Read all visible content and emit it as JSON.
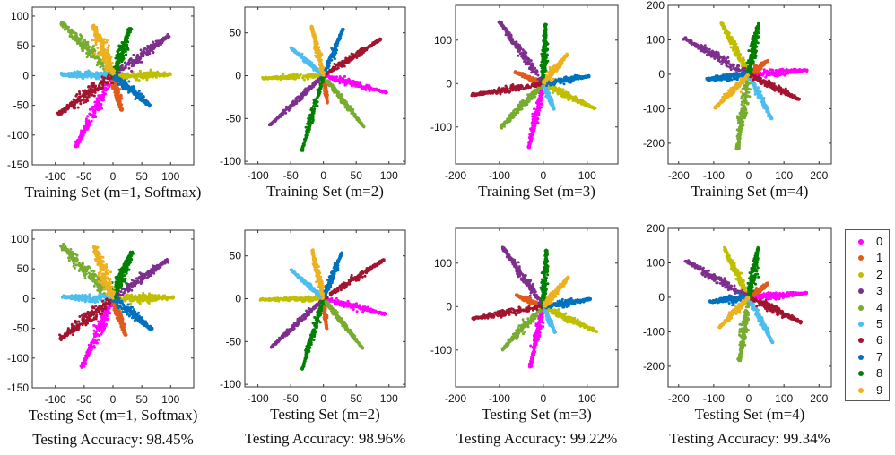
{
  "class_colors": [
    "#ff00ff",
    "#e05a1c",
    "#bfbf00",
    "#7e2f8e",
    "#77ac30",
    "#4dbeee",
    "#a2142f",
    "#0072bd",
    "#008000",
    "#edb120"
  ],
  "legend": {
    "labels": [
      "0",
      "1",
      "2",
      "3",
      "4",
      "5",
      "6",
      "7",
      "8",
      "9"
    ]
  },
  "chart_data": [
    {
      "type": "scatter",
      "title": "",
      "caption": "Training Set (m=1, Softmax)",
      "accuracy": "",
      "xlim": [
        -140,
        140
      ],
      "ylim": [
        -150,
        115
      ],
      "xticks": [
        -100,
        -50,
        0,
        50,
        100
      ],
      "xtick_labels": [
        "-100",
        "-50",
        "0",
        "50",
        "100"
      ],
      "yticks": [
        -150,
        -100,
        -50,
        0,
        50,
        100
      ],
      "ytick_labels": [
        "-150",
        "-100",
        "-50",
        "0",
        "50",
        "100"
      ],
      "clusters": [
        {
          "class": "0",
          "end": [
            -65,
            -120
          ],
          "width": 9
        },
        {
          "class": "1",
          "end": [
            15,
            -60
          ],
          "width": 6
        },
        {
          "class": "2",
          "end": [
            100,
            2
          ],
          "width": 9
        },
        {
          "class": "3",
          "end": [
            97,
            67
          ],
          "width": 10
        },
        {
          "class": "4",
          "end": [
            -90,
            90
          ],
          "width": 12
        },
        {
          "class": "5",
          "end": [
            -90,
            2
          ],
          "width": 8
        },
        {
          "class": "6",
          "end": [
            -95,
            -65
          ],
          "width": 12
        },
        {
          "class": "7",
          "end": [
            65,
            -50
          ],
          "width": 9
        },
        {
          "class": "8",
          "end": [
            30,
            80
          ],
          "width": 10
        },
        {
          "class": "9",
          "end": [
            -35,
            85
          ],
          "width": 12
        }
      ]
    },
    {
      "type": "scatter",
      "title": "",
      "caption": "Training Set (m=2)",
      "accuracy": "",
      "xlim": [
        -120,
        125
      ],
      "ylim": [
        -103,
        80
      ],
      "xticks": [
        -100,
        -50,
        0,
        50,
        100
      ],
      "xtick_labels": [
        "-100",
        "-50",
        "0",
        "50",
        "100"
      ],
      "yticks": [
        -100,
        -50,
        0,
        50
      ],
      "ytick_labels": [
        "-100",
        "-50",
        "0",
        "50"
      ],
      "clusters": [
        {
          "class": "0",
          "end": [
            97,
            -20
          ],
          "width": 6
        },
        {
          "class": "1",
          "end": [
            6,
            -32
          ],
          "width": 3
        },
        {
          "class": "2",
          "end": [
            -93,
            -3
          ],
          "width": 5
        },
        {
          "class": "3",
          "end": [
            -82,
            -58
          ],
          "width": 5
        },
        {
          "class": "4",
          "end": [
            62,
            -60
          ],
          "width": 5
        },
        {
          "class": "5",
          "end": [
            -50,
            33
          ],
          "width": 4
        },
        {
          "class": "6",
          "end": [
            88,
            43
          ],
          "width": 6
        },
        {
          "class": "7",
          "end": [
            30,
            55
          ],
          "width": 5
        },
        {
          "class": "8",
          "end": [
            -33,
            -88
          ],
          "width": 5
        },
        {
          "class": "9",
          "end": [
            -18,
            58
          ],
          "width": 5
        }
      ]
    },
    {
      "type": "scatter",
      "title": "",
      "caption": "Training Set (m=3)",
      "accuracy": "",
      "xlim": [
        -200,
        170
      ],
      "ylim": [
        -185,
        180
      ],
      "xticks": [
        -200,
        -100,
        0,
        100
      ],
      "xtick_labels": [
        "-200",
        "-100",
        "0",
        "100"
      ],
      "yticks": [
        -100,
        0,
        100
      ],
      "ytick_labels": [
        "-100",
        "0",
        "100"
      ],
      "clusters": [
        {
          "class": "0",
          "end": [
            -33,
            -148
          ],
          "width": 6
        },
        {
          "class": "1",
          "end": [
            -65,
            27
          ],
          "width": 5
        },
        {
          "class": "2",
          "end": [
            118,
            -58
          ],
          "width": 7
        },
        {
          "class": "3",
          "end": [
            -100,
            143
          ],
          "width": 7
        },
        {
          "class": "4",
          "end": [
            -97,
            -102
          ],
          "width": 7
        },
        {
          "class": "5",
          "end": [
            25,
            -60
          ],
          "width": 4
        },
        {
          "class": "6",
          "end": [
            -165,
            -27
          ],
          "width": 7
        },
        {
          "class": "7",
          "end": [
            105,
            17
          ],
          "width": 6
        },
        {
          "class": "8",
          "end": [
            5,
            137
          ],
          "width": 6
        },
        {
          "class": "9",
          "end": [
            55,
            68
          ],
          "width": 6
        }
      ]
    },
    {
      "type": "scatter",
      "title": "",
      "caption": "Training Set (m=4)",
      "accuracy": "",
      "xlim": [
        -230,
        235
      ],
      "ylim": [
        -260,
        200
      ],
      "xticks": [
        -200,
        -100,
        0,
        100,
        200
      ],
      "xtick_labels": [
        "-200",
        "-100",
        "0",
        "100",
        "200"
      ],
      "yticks": [
        -200,
        -100,
        0,
        100,
        200
      ],
      "ytick_labels": [
        "-200",
        "-100",
        "0",
        "100",
        "200"
      ],
      "clusters": [
        {
          "class": "0",
          "end": [
            168,
            12
          ],
          "width": 7
        },
        {
          "class": "1",
          "end": [
            55,
            40
          ],
          "width": 5
        },
        {
          "class": "2",
          "end": [
            -78,
            150
          ],
          "width": 6
        },
        {
          "class": "3",
          "end": [
            -185,
            105
          ],
          "width": 8
        },
        {
          "class": "4",
          "end": [
            -33,
            -218
          ],
          "width": 8
        },
        {
          "class": "5",
          "end": [
            65,
            -130
          ],
          "width": 5
        },
        {
          "class": "6",
          "end": [
            145,
            -73
          ],
          "width": 7
        },
        {
          "class": "7",
          "end": [
            -120,
            -15
          ],
          "width": 7
        },
        {
          "class": "8",
          "end": [
            27,
            148
          ],
          "width": 7
        },
        {
          "class": "9",
          "end": [
            -97,
            -98
          ],
          "width": 6
        }
      ]
    },
    {
      "type": "scatter",
      "title": "",
      "caption": "Testing Set (m=1, Softmax)",
      "accuracy": "Testing Accuracy: 98.45%",
      "xlim": [
        -140,
        140
      ],
      "ylim": [
        -150,
        115
      ],
      "xticks": [
        -100,
        -50,
        0,
        50,
        100
      ],
      "xtick_labels": [
        "-100",
        "-50",
        "0",
        "50",
        "100"
      ],
      "yticks": [
        -150,
        -100,
        -50,
        0,
        50,
        100
      ],
      "ytick_labels": [
        "-150",
        "-100",
        "-50",
        "0",
        "50",
        "100"
      ],
      "clusters": [
        {
          "class": "0",
          "end": [
            -55,
            -118
          ],
          "width": 9
        },
        {
          "class": "1",
          "end": [
            22,
            -62
          ],
          "width": 6
        },
        {
          "class": "2",
          "end": [
            105,
            2
          ],
          "width": 9
        },
        {
          "class": "3",
          "end": [
            95,
            65
          ],
          "width": 10
        },
        {
          "class": "4",
          "end": [
            -90,
            90
          ],
          "width": 12
        },
        {
          "class": "5",
          "end": [
            -88,
            3
          ],
          "width": 8
        },
        {
          "class": "6",
          "end": [
            -92,
            -68
          ],
          "width": 12
        },
        {
          "class": "7",
          "end": [
            68,
            -52
          ],
          "width": 9
        },
        {
          "class": "8",
          "end": [
            33,
            80
          ],
          "width": 10
        },
        {
          "class": "9",
          "end": [
            -32,
            88
          ],
          "width": 12
        }
      ]
    },
    {
      "type": "scatter",
      "title": "",
      "caption": "Testing Set (m=2)",
      "accuracy": "Testing Accuracy: 98.96%",
      "xlim": [
        -120,
        125
      ],
      "ylim": [
        -103,
        80
      ],
      "xticks": [
        -100,
        -50,
        0,
        50,
        100
      ],
      "xtick_labels": [
        "-100",
        "-50",
        "0",
        "50",
        "100"
      ],
      "yticks": [
        -100,
        -50,
        0,
        50
      ],
      "ytick_labels": [
        "-100",
        "-50",
        "0",
        "50"
      ],
      "clusters": [
        {
          "class": "0",
          "end": [
            95,
            -18
          ],
          "width": 6
        },
        {
          "class": "1",
          "end": [
            5,
            -35
          ],
          "width": 3
        },
        {
          "class": "2",
          "end": [
            -97,
            -1
          ],
          "width": 5
        },
        {
          "class": "3",
          "end": [
            -80,
            -57
          ],
          "width": 5
        },
        {
          "class": "4",
          "end": [
            60,
            -58
          ],
          "width": 5
        },
        {
          "class": "5",
          "end": [
            -50,
            34
          ],
          "width": 4
        },
        {
          "class": "6",
          "end": [
            93,
            46
          ],
          "width": 6
        },
        {
          "class": "7",
          "end": [
            28,
            54
          ],
          "width": 5
        },
        {
          "class": "8",
          "end": [
            -33,
            -83
          ],
          "width": 5
        },
        {
          "class": "9",
          "end": [
            -17,
            57
          ],
          "width": 5
        }
      ]
    },
    {
      "type": "scatter",
      "title": "",
      "caption": "Testing Set (m=3)",
      "accuracy": "Testing Accuracy: 99.22%",
      "xlim": [
        -200,
        170
      ],
      "ylim": [
        -185,
        180
      ],
      "xticks": [
        -200,
        -100,
        0,
        100
      ],
      "xtick_labels": [
        "-200",
        "-100",
        "0",
        "100"
      ],
      "yticks": [
        -100,
        0,
        100
      ],
      "ytick_labels": [
        "-100",
        "0",
        "100"
      ],
      "clusters": [
        {
          "class": "0",
          "end": [
            -30,
            -140
          ],
          "width": 6
        },
        {
          "class": "1",
          "end": [
            -63,
            27
          ],
          "width": 5
        },
        {
          "class": "2",
          "end": [
            122,
            -58
          ],
          "width": 7
        },
        {
          "class": "3",
          "end": [
            -93,
            137
          ],
          "width": 7
        },
        {
          "class": "4",
          "end": [
            -95,
            -100
          ],
          "width": 7
        },
        {
          "class": "5",
          "end": [
            27,
            -60
          ],
          "width": 4
        },
        {
          "class": "6",
          "end": [
            -162,
            -28
          ],
          "width": 7
        },
        {
          "class": "7",
          "end": [
            108,
            17
          ],
          "width": 6
        },
        {
          "class": "8",
          "end": [
            7,
            130
          ],
          "width": 6
        },
        {
          "class": "9",
          "end": [
            58,
            68
          ],
          "width": 6
        }
      ]
    },
    {
      "type": "scatter",
      "title": "",
      "caption": "Testing Set (m=4)",
      "accuracy": "Testing Accuracy: 99.34%",
      "xlim": [
        -230,
        235
      ],
      "ylim": [
        -260,
        200
      ],
      "xticks": [
        -200,
        -100,
        0,
        100,
        200
      ],
      "xtick_labels": [
        "-200",
        "-100",
        "0",
        "100",
        "200"
      ],
      "yticks": [
        -200,
        -100,
        0,
        100,
        200
      ],
      "ytick_labels": [
        "-200",
        "-100",
        "0",
        "100",
        "200"
      ],
      "clusters": [
        {
          "class": "0",
          "end": [
            165,
            12
          ],
          "width": 7
        },
        {
          "class": "1",
          "end": [
            55,
            40
          ],
          "width": 5
        },
        {
          "class": "2",
          "end": [
            -72,
            145
          ],
          "width": 6
        },
        {
          "class": "3",
          "end": [
            -182,
            107
          ],
          "width": 8
        },
        {
          "class": "4",
          "end": [
            -27,
            -185
          ],
          "width": 8
        },
        {
          "class": "5",
          "end": [
            68,
            -132
          ],
          "width": 5
        },
        {
          "class": "6",
          "end": [
            150,
            -73
          ],
          "width": 7
        },
        {
          "class": "7",
          "end": [
            -112,
            -13
          ],
          "width": 7
        },
        {
          "class": "8",
          "end": [
            27,
            145
          ],
          "width": 7
        },
        {
          "class": "9",
          "end": [
            -85,
            -88
          ],
          "width": 6
        }
      ]
    }
  ]
}
